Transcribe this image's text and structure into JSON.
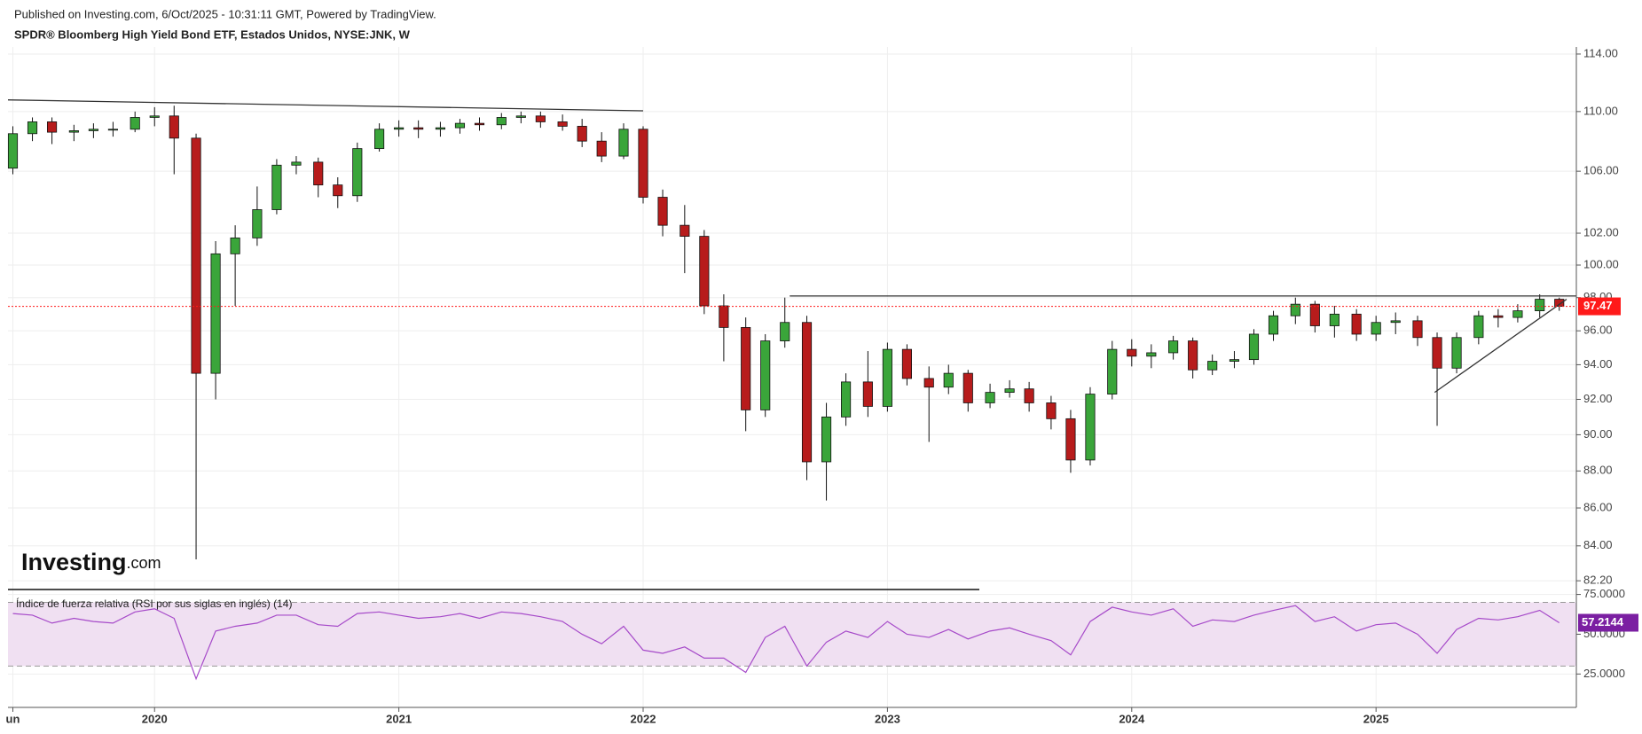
{
  "header": {
    "published": "Published on Investing.com, 6/Oct/2025 - 10:31:11 GMT, Powered by TradingView.",
    "logo": [
      "Investing",
      ".com"
    ]
  },
  "chart_data": [
    {
      "type": "candlestick",
      "title": "SPDR® Bloomberg High Yield Bond ETF, Estados Unidos, NYSE:JNK, W",
      "log_scale": true,
      "grid": true,
      "up_color": "#3aa53a",
      "down_color": "#b71c1c",
      "x": [
        2019.42,
        2019.5,
        2019.58,
        2019.67,
        2019.75,
        2019.83,
        2019.92,
        2020.0,
        2020.08,
        2020.17,
        2020.25,
        2020.33,
        2020.42,
        2020.5,
        2020.58,
        2020.67,
        2020.75,
        2020.83,
        2020.92,
        2021.0,
        2021.08,
        2021.17,
        2021.25,
        2021.33,
        2021.42,
        2021.5,
        2021.58,
        2021.67,
        2021.75,
        2021.83,
        2021.92,
        2022.0,
        2022.08,
        2022.17,
        2022.25,
        2022.33,
        2022.42,
        2022.5,
        2022.58,
        2022.67,
        2022.75,
        2022.83,
        2022.92,
        2023.0,
        2023.08,
        2023.17,
        2023.25,
        2023.33,
        2023.42,
        2023.5,
        2023.58,
        2023.67,
        2023.75,
        2023.83,
        2023.92,
        2024.0,
        2024.08,
        2024.17,
        2024.25,
        2024.33,
        2024.42,
        2024.5,
        2024.58,
        2024.67,
        2024.75,
        2024.83,
        2024.92,
        2025.0,
        2025.08,
        2025.17,
        2025.25,
        2025.33,
        2025.42,
        2025.5,
        2025.58,
        2025.67,
        2025.75
      ],
      "open": [
        106.2,
        108.5,
        109.3,
        108.6,
        108.7,
        108.8,
        108.8,
        109.6,
        109.7,
        108.2,
        93.5,
        100.7,
        101.7,
        103.5,
        106.4,
        106.6,
        105.1,
        104.4,
        107.5,
        108.8,
        108.9,
        108.8,
        108.9,
        109.2,
        109.1,
        109.6,
        109.7,
        109.3,
        109.0,
        108.0,
        107.0,
        108.8,
        104.3,
        102.5,
        101.8,
        97.5,
        96.2,
        91.4,
        95.4,
        96.5,
        88.5,
        91.0,
        93.0,
        91.6,
        94.9,
        93.2,
        92.7,
        93.5,
        91.8,
        92.4,
        92.6,
        91.8,
        90.9,
        88.6,
        92.3,
        94.9,
        94.5,
        94.7,
        95.4,
        93.7,
        94.2,
        94.3,
        95.8,
        96.9,
        97.6,
        96.3,
        97.0,
        95.8,
        96.5,
        96.6,
        95.6,
        93.8,
        95.6,
        96.9,
        96.8,
        97.2,
        97.9
      ],
      "high": [
        109.0,
        109.6,
        109.6,
        109.1,
        109.2,
        109.3,
        110.0,
        110.3,
        110.4,
        108.5,
        101.5,
        102.5,
        105.0,
        106.8,
        107.0,
        106.9,
        105.6,
        107.9,
        109.2,
        109.4,
        109.4,
        109.3,
        109.5,
        109.6,
        109.9,
        110.0,
        110.0,
        109.8,
        109.5,
        108.6,
        109.2,
        109.0,
        104.8,
        103.8,
        102.2,
        98.2,
        96.8,
        95.8,
        98.0,
        96.9,
        91.8,
        93.5,
        94.8,
        95.3,
        95.2,
        93.9,
        94.0,
        93.7,
        92.9,
        93.1,
        93.0,
        92.2,
        91.4,
        92.7,
        95.4,
        95.5,
        95.2,
        95.7,
        95.6,
        94.6,
        94.8,
        96.1,
        97.2,
        98.0,
        97.8,
        97.5,
        97.3,
        96.9,
        97.1,
        96.9,
        95.9,
        95.9,
        97.2,
        97.3,
        97.6,
        98.2,
        98.0
      ],
      "low": [
        105.8,
        108.0,
        107.8,
        108.0,
        108.2,
        108.3,
        108.6,
        109.0,
        105.8,
        83.3,
        92.0,
        97.5,
        101.2,
        103.2,
        105.8,
        104.3,
        103.6,
        104.0,
        107.3,
        108.3,
        108.2,
        108.3,
        108.5,
        108.7,
        108.8,
        109.2,
        108.9,
        108.7,
        107.6,
        106.6,
        106.8,
        103.9,
        101.8,
        99.5,
        97.0,
        94.2,
        90.2,
        91.0,
        95.0,
        87.5,
        86.4,
        90.5,
        91.0,
        91.3,
        92.8,
        89.6,
        92.3,
        91.3,
        91.5,
        92.1,
        91.3,
        90.3,
        87.9,
        88.3,
        92.0,
        93.9,
        93.8,
        94.3,
        93.2,
        93.4,
        93.8,
        94.0,
        95.4,
        96.4,
        95.9,
        95.6,
        95.4,
        95.4,
        95.8,
        95.1,
        90.5,
        93.5,
        95.2,
        96.2,
        96.5,
        96.8,
        97.2
      ],
      "close": [
        108.5,
        109.3,
        108.6,
        108.7,
        108.8,
        108.8,
        109.6,
        109.7,
        108.2,
        93.5,
        100.7,
        101.7,
        103.5,
        106.4,
        106.6,
        105.1,
        104.4,
        107.5,
        108.8,
        108.9,
        108.8,
        108.9,
        109.2,
        109.1,
        109.6,
        109.7,
        109.3,
        109.0,
        108.0,
        107.0,
        108.8,
        104.3,
        102.5,
        101.8,
        97.5,
        96.2,
        91.4,
        95.4,
        96.5,
        88.5,
        91.0,
        93.0,
        91.6,
        94.9,
        93.2,
        92.7,
        93.5,
        91.8,
        92.4,
        92.6,
        91.8,
        90.9,
        88.6,
        92.3,
        94.9,
        94.5,
        94.7,
        95.4,
        93.7,
        94.2,
        94.3,
        95.8,
        96.9,
        97.6,
        96.3,
        97.0,
        95.8,
        96.5,
        96.6,
        95.6,
        93.8,
        95.6,
        96.9,
        96.8,
        97.2,
        97.9,
        97.47
      ],
      "last_value": 97.47,
      "last_color": "#ff1a1a",
      "trend_lines": [
        {
          "x": [
            2019.4,
            2022.0
          ],
          "y": [
            110.8,
            110.05
          ]
        },
        {
          "x": [
            2022.6,
            2025.82
          ],
          "y": [
            98.1,
            98.1
          ]
        },
        {
          "x": [
            2025.24,
            2025.78
          ],
          "y": [
            92.4,
            97.9
          ]
        }
      ],
      "xlim": [
        2019.4,
        2025.82
      ],
      "ylim": [
        81.8,
        114.5
      ],
      "yticks": [
        {
          "value": 82.2,
          "label": "82.20"
        },
        {
          "value": 84,
          "label": "84.00"
        },
        {
          "value": 86,
          "label": "86.00"
        },
        {
          "value": 88,
          "label": "88.00"
        },
        {
          "value": 90,
          "label": "90.00"
        },
        {
          "value": 92,
          "label": "92.00"
        },
        {
          "value": 94,
          "label": "94.00"
        },
        {
          "value": 96,
          "label": "96.00"
        },
        {
          "value": 98,
          "label": "98.00"
        },
        {
          "value": 100,
          "label": "100.00"
        },
        {
          "value": 102,
          "label": "102.00"
        },
        {
          "value": 106,
          "label": "106.00"
        },
        {
          "value": 110,
          "label": "110.00"
        },
        {
          "value": 114,
          "label": "114.00"
        }
      ]
    },
    {
      "type": "line",
      "title": "Índice de fuerza relativa (RSI por sus siglas en inglés) (14)",
      "color": "#a64ac9",
      "grid": true,
      "x": [
        2019.42,
        2019.5,
        2019.58,
        2019.67,
        2019.75,
        2019.83,
        2019.92,
        2020.0,
        2020.08,
        2020.17,
        2020.25,
        2020.33,
        2020.42,
        2020.5,
        2020.58,
        2020.67,
        2020.75,
        2020.83,
        2020.92,
        2021.0,
        2021.08,
        2021.17,
        2021.25,
        2021.33,
        2021.42,
        2021.5,
        2021.58,
        2021.67,
        2021.75,
        2021.83,
        2021.92,
        2022.0,
        2022.08,
        2022.17,
        2022.25,
        2022.33,
        2022.42,
        2022.5,
        2022.58,
        2022.67,
        2022.75,
        2022.83,
        2022.92,
        2023.0,
        2023.08,
        2023.17,
        2023.25,
        2023.33,
        2023.42,
        2023.5,
        2023.58,
        2023.67,
        2023.75,
        2023.83,
        2023.92,
        2024.0,
        2024.08,
        2024.17,
        2024.25,
        2024.33,
        2024.42,
        2024.5,
        2024.58,
        2024.67,
        2024.75,
        2024.83,
        2024.92,
        2025.0,
        2025.08,
        2025.17,
        2025.25,
        2025.33,
        2025.42,
        2025.5,
        2025.58,
        2025.67,
        2025.75
      ],
      "values": [
        63,
        62,
        57,
        60,
        58,
        57,
        64,
        66,
        60,
        22,
        52,
        55,
        57,
        62,
        62,
        56,
        55,
        63,
        64,
        62,
        60,
        61,
        63,
        60,
        64,
        63,
        61,
        58,
        50,
        44,
        55,
        40,
        38,
        42,
        35,
        35,
        26,
        48,
        55,
        30,
        45,
        52,
        48,
        58,
        50,
        48,
        53,
        47,
        52,
        54,
        50,
        46,
        37,
        58,
        67,
        64,
        62,
        66,
        55,
        59,
        58,
        62,
        65,
        68,
        58,
        61,
        52,
        56,
        57,
        50,
        38,
        53,
        60,
        59,
        61,
        65,
        57.2144
      ],
      "last_value": 57.2144,
      "band": [
        30,
        70
      ],
      "band_color": "#f0e0f2",
      "xlim": [
        2019.4,
        2025.82
      ],
      "ylim": [
        4,
        77
      ],
      "yticks": [
        {
          "value": 25,
          "label": "25.0000"
        },
        {
          "value": 50,
          "label": "50.0000"
        },
        {
          "value": 75,
          "label": "75.0000"
        }
      ],
      "xticks": [
        {
          "value": 2019.42,
          "label": "un"
        },
        2020,
        2021,
        2022,
        2023,
        2024,
        2025
      ]
    }
  ]
}
